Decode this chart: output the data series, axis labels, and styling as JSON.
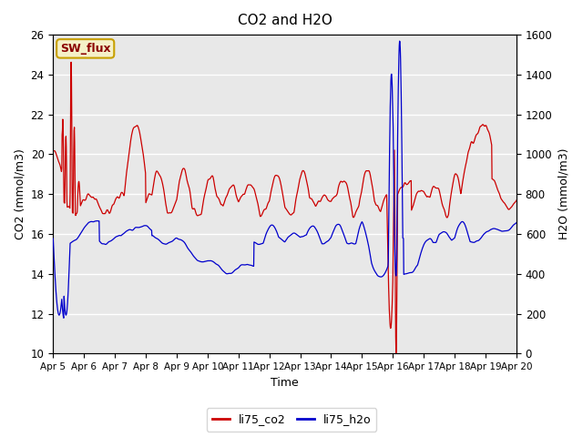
{
  "title": "CO2 and H2O",
  "xlabel": "Time",
  "ylabel_left": "CO2 (mmol/m3)",
  "ylabel_right": "H2O (mmol/m3)",
  "ylim_left": [
    10,
    26
  ],
  "ylim_right": [
    0,
    1600
  ],
  "co2_color": "#cc0000",
  "h2o_color": "#0000cc",
  "bg_color": "#e8e8e8",
  "sw_flux_label": "SW_flux",
  "sw_flux_bg": "#f5f0c8",
  "sw_flux_border": "#c8a000",
  "legend_co2": "li75_co2",
  "legend_h2o": "li75_h2o",
  "xtick_labels": [
    "Apr 5",
    "Apr 6",
    "Apr 7",
    "Apr 8",
    "Apr 9",
    "Apr 10",
    "Apr 11",
    "Apr 12",
    "Apr 13",
    "Apr 14",
    "Apr 15",
    "Apr 16",
    "Apr 17",
    "Apr 18",
    "Apr 19",
    "Apr 20"
  ],
  "yticks_left": [
    10,
    12,
    14,
    16,
    18,
    20,
    22,
    24,
    26
  ],
  "yticks_right": [
    0,
    200,
    400,
    600,
    800,
    1000,
    1200,
    1400,
    1600
  ],
  "grid_color": "#ffffff",
  "figsize": [
    6.4,
    4.8
  ],
  "dpi": 100
}
